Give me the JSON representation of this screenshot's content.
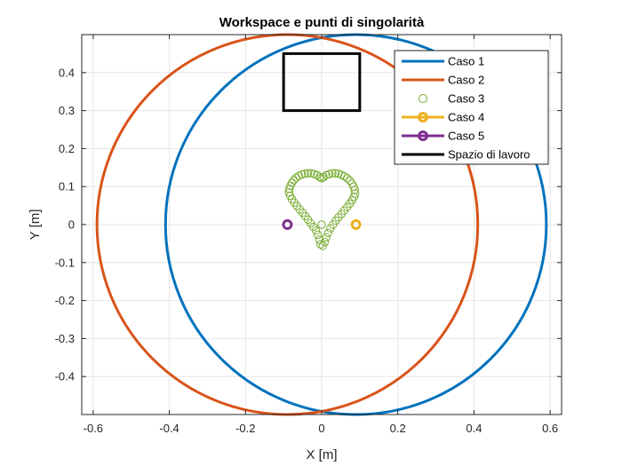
{
  "chart_data": {
    "type": "line",
    "title": "Workspace e punti di singolarità",
    "xlabel": "X [m]",
    "ylabel": "Y [m]",
    "xlim": [
      -0.63,
      0.63
    ],
    "ylim": [
      -0.5,
      0.5
    ],
    "xticks": [
      -0.6,
      -0.4,
      -0.2,
      0,
      0.2,
      0.4,
      0.6
    ],
    "yticks": [
      -0.4,
      -0.3,
      -0.2,
      -0.1,
      0,
      0.1,
      0.2,
      0.3,
      0.4
    ],
    "xtick_labels": [
      "-0.6",
      "-0.4",
      "-0.2",
      "0",
      "0.2",
      "0.4",
      "0.6"
    ],
    "ytick_labels": [
      "-0.4",
      "-0.3",
      "-0.2",
      "-0.1",
      "0",
      "0.1",
      "0.2",
      "0.3",
      "0.4"
    ],
    "grid": true,
    "legend_position": "top-right",
    "series": [
      {
        "name": "Caso 1",
        "kind": "circle",
        "center": [
          0.09,
          0.0
        ],
        "radius": 0.5,
        "color": "#0072BD"
      },
      {
        "name": "Caso 2",
        "kind": "circle",
        "center": [
          -0.09,
          0.0
        ],
        "radius": 0.5,
        "color": "#D95319"
      },
      {
        "name": "Caso 3",
        "kind": "markers",
        "color": "#77AC30",
        "points": [
          [
            -0.005,
            0.125
          ],
          [
            -0.012,
            0.13
          ],
          [
            -0.02,
            0.133
          ],
          [
            -0.028,
            0.135
          ],
          [
            -0.036,
            0.135
          ],
          [
            -0.044,
            0.134
          ],
          [
            -0.052,
            0.132
          ],
          [
            -0.06,
            0.128
          ],
          [
            -0.067,
            0.123
          ],
          [
            -0.073,
            0.117
          ],
          [
            -0.078,
            0.11
          ],
          [
            -0.082,
            0.102
          ],
          [
            -0.085,
            0.094
          ],
          [
            -0.086,
            0.085
          ],
          [
            -0.083,
            0.076
          ],
          [
            -0.078,
            0.067
          ],
          [
            -0.072,
            0.058
          ],
          [
            -0.065,
            0.049
          ],
          [
            -0.058,
            0.04
          ],
          [
            -0.05,
            0.031
          ],
          [
            -0.043,
            0.022
          ],
          [
            -0.036,
            0.013
          ],
          [
            -0.029,
            0.004
          ],
          [
            -0.022,
            -0.006
          ],
          [
            -0.015,
            -0.016
          ],
          [
            -0.01,
            -0.027
          ],
          [
            -0.006,
            -0.04
          ],
          [
            -0.003,
            -0.052
          ],
          [
            0.003,
            -0.056
          ],
          [
            0.008,
            -0.046
          ],
          [
            0.012,
            -0.034
          ],
          [
            0.017,
            -0.022
          ],
          [
            0.023,
            -0.01
          ],
          [
            0.03,
            0.0
          ],
          [
            0.037,
            0.01
          ],
          [
            0.044,
            0.019
          ],
          [
            0.052,
            0.028
          ],
          [
            0.059,
            0.037
          ],
          [
            0.067,
            0.046
          ],
          [
            0.074,
            0.055
          ],
          [
            0.08,
            0.064
          ],
          [
            0.085,
            0.073
          ],
          [
            0.088,
            0.082
          ],
          [
            0.087,
            0.091
          ],
          [
            0.084,
            0.1
          ],
          [
            0.08,
            0.108
          ],
          [
            0.074,
            0.116
          ],
          [
            0.067,
            0.122
          ],
          [
            0.06,
            0.127
          ],
          [
            0.052,
            0.131
          ],
          [
            0.044,
            0.134
          ],
          [
            0.036,
            0.135
          ],
          [
            0.028,
            0.135
          ],
          [
            0.02,
            0.133
          ],
          [
            0.012,
            0.13
          ],
          [
            0.005,
            0.125
          ],
          [
            0.0,
            0.122
          ],
          [
            0.0,
            0.0
          ]
        ]
      },
      {
        "name": "Caso 4",
        "kind": "marker",
        "point": [
          0.09,
          0.0
        ],
        "color": "#EDB120"
      },
      {
        "name": "Caso 5",
        "kind": "marker",
        "point": [
          -0.09,
          0.0
        ],
        "color": "#7E2F8E"
      },
      {
        "name": "Spazio di lavoro",
        "kind": "rectangle",
        "x": [
          -0.1,
          0.1
        ],
        "y": [
          0.3,
          0.45
        ],
        "color": "#000000"
      }
    ]
  }
}
